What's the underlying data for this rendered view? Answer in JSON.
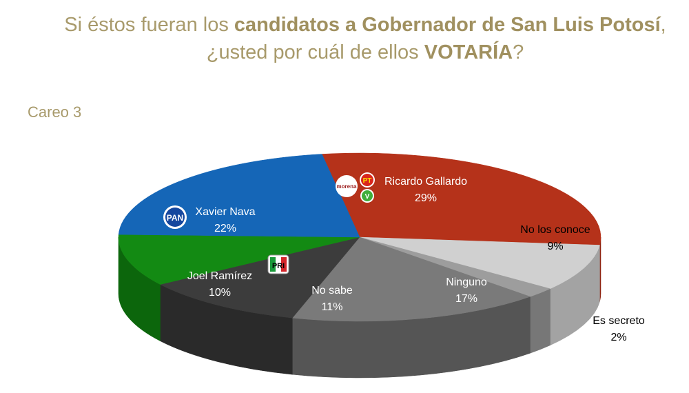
{
  "title": {
    "line1_pre": "Si éstos fueran los ",
    "line1_bold": "candidatos a Gobernador de San Luis Potosí",
    "line1_post": ",",
    "line2_pre": "¿usted por cuál de ellos ",
    "line2_bold": "VOTARÍA",
    "line2_post": "?"
  },
  "subtitle": "Careo 3",
  "logos": {
    "pan": "PAN",
    "pri": "PRI",
    "morena": "morena",
    "pt": "PT",
    "pvem": "V"
  },
  "chart_data": {
    "type": "pie",
    "title": "Si éstos fueran los candidatos a Gobernador de San Luis Potosí, ¿usted por cuál de ellos VOTARÍA?",
    "subtitle": "Careo 3",
    "unit": "%",
    "slices": [
      {
        "label": "Ricardo Gallardo",
        "value": 29,
        "display": "29%",
        "color": "#b5321a",
        "side": "#8f2412"
      },
      {
        "label": "No los conoce",
        "value": 9,
        "display": "9%",
        "color": "#d0d0d0",
        "side": "#a3a3a3"
      },
      {
        "label": "Es secreto",
        "value": 2,
        "display": "2%",
        "color": "#9d9d9d",
        "side": "#777777"
      },
      {
        "label": "Ninguno",
        "value": 17,
        "display": "17%",
        "color": "#7a7a7a",
        "side": "#555555"
      },
      {
        "label": "No sabe",
        "value": 11,
        "display": "11%",
        "color": "#3c3c3c",
        "side": "#2a2a2a"
      },
      {
        "label": "Joel Ramírez",
        "value": 10,
        "display": "10%",
        "color": "#138a13",
        "side": "#0c660c"
      },
      {
        "label": "Xavier Nava",
        "value": 22,
        "display": "22%",
        "color": "#1566b7",
        "side": "#0e4f92"
      }
    ]
  }
}
